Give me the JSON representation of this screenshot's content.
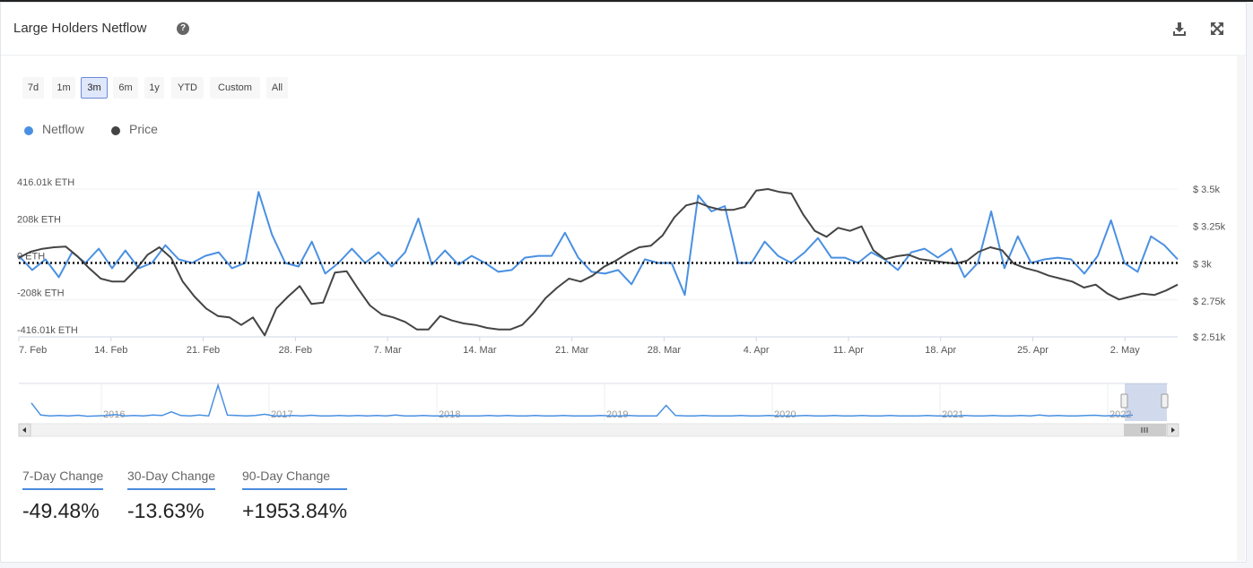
{
  "header": {
    "title": "Large Holders Netflow",
    "help_icon": "question-circle-icon",
    "download_icon": "download-icon",
    "expand_icon": "expand-icon"
  },
  "range_selector": {
    "buttons": [
      "7d",
      "1m",
      "3m",
      "6m",
      "1y",
      "YTD",
      "Custom",
      "All"
    ],
    "active": "3m"
  },
  "colors": {
    "netflow": "#4a90e2",
    "price": "#444444",
    "stat_underline": "#4a8bdf"
  },
  "chart_data": {
    "type": "line",
    "legend": [
      "Netflow",
      "Price"
    ],
    "legend_position": "top-left",
    "x_tick_labels": [
      "7. Feb",
      "14. Feb",
      "21. Feb",
      "28. Feb",
      "7. Mar",
      "14. Mar",
      "21. Mar",
      "28. Mar",
      "4. Apr",
      "11. Apr",
      "18. Apr",
      "25. Apr",
      "2. May"
    ],
    "x_range": [
      "2022-02-07",
      "2022-05-06"
    ],
    "left_axis": {
      "tick_labels": [
        "416.01k ETH",
        "208k ETH",
        "0 ETH",
        "-208k ETH",
        "-416.01k ETH"
      ],
      "ylim": [
        -416010,
        416010
      ]
    },
    "right_axis": {
      "tick_labels": [
        "$ 3.5k",
        "$ 3.25k",
        "$ 3k",
        "$ 2.75k",
        "$ 2.51k"
      ],
      "ylim": [
        2510,
        3500
      ]
    },
    "zero_line": "dotted",
    "grid": true,
    "series": [
      {
        "name": "Netflow",
        "axis": "left",
        "values": [
          40000,
          -40000,
          20000,
          -80000,
          60000,
          0,
          80000,
          -30000,
          70000,
          -30000,
          0,
          100000,
          20000,
          0,
          40000,
          60000,
          -30000,
          0,
          400000,
          160000,
          0,
          -20000,
          120000,
          -60000,
          0,
          80000,
          0,
          60000,
          -20000,
          60000,
          250000,
          -10000,
          70000,
          -10000,
          40000,
          0,
          -50000,
          -40000,
          30000,
          40000,
          40000,
          170000,
          30000,
          -50000,
          -60000,
          -40000,
          -120000,
          20000,
          0,
          0,
          -180000,
          380000,
          290000,
          320000,
          0,
          0,
          120000,
          40000,
          0,
          60000,
          140000,
          30000,
          30000,
          0,
          60000,
          20000,
          -40000,
          60000,
          80000,
          30000,
          80000,
          -80000,
          0,
          290000,
          -30000,
          150000,
          0,
          20000,
          30000,
          20000,
          -60000,
          40000,
          240000,
          0,
          -50000,
          150000,
          100000,
          20000
        ],
        "values_unit": "ETH"
      },
      {
        "name": "Price",
        "axis": "right",
        "values": [
          3040,
          3080,
          3100,
          3110,
          3115,
          3050,
          2970,
          2900,
          2880,
          2880,
          2960,
          3060,
          3110,
          3040,
          2880,
          2780,
          2700,
          2650,
          2640,
          2590,
          2640,
          2520,
          2700,
          2780,
          2850,
          2730,
          2740,
          2940,
          2950,
          2830,
          2720,
          2660,
          2640,
          2610,
          2560,
          2560,
          2650,
          2620,
          2600,
          2590,
          2570,
          2560,
          2560,
          2590,
          2670,
          2770,
          2840,
          2900,
          2880,
          2920,
          2980,
          3020,
          3070,
          3110,
          3120,
          3190,
          3310,
          3390,
          3410,
          3380,
          3360,
          3360,
          3380,
          3490,
          3500,
          3480,
          3470,
          3330,
          3220,
          3180,
          3240,
          3220,
          3250,
          3090,
          3030,
          3050,
          3060,
          3030,
          3020,
          3010,
          3000,
          3020,
          3080,
          3110,
          3090,
          3000,
          2970,
          2950,
          2920,
          2900,
          2880,
          2840,
          2860,
          2800,
          2760,
          2780,
          2800,
          2790,
          2820,
          2860
        ],
        "values_unit": "USD"
      }
    ]
  },
  "navigator": {
    "year_labels": [
      "2016",
      "2017",
      "2018",
      "2019",
      "2020",
      "2021",
      "2022"
    ],
    "scroll_left_icon": "arrow-left-icon",
    "scroll_right_icon": "arrow-right-icon",
    "scroll_grip_icon": "grip-icon",
    "values": [
      0.9,
      0.15,
      0.1,
      0.12,
      0.1,
      0.14,
      0.08,
      0.1,
      0.12,
      0.18,
      0.1,
      0.12,
      0.1,
      0.15,
      0.12,
      0.35,
      0.12,
      0.1,
      0.15,
      0.1,
      2.0,
      0.15,
      0.12,
      0.1,
      0.12,
      0.2,
      0.1,
      0.1,
      0.12,
      0.1,
      0.14,
      0.1,
      0.1,
      0.12,
      0.1,
      0.12,
      0.1,
      0.12,
      0.1,
      0.15,
      0.1,
      0.1,
      0.12,
      0.1,
      0.1,
      0.12,
      0.1,
      0.1,
      0.1,
      0.12,
      0.1,
      0.12,
      0.1,
      0.1,
      0.12,
      0.1,
      0.1,
      0.12,
      0.1,
      0.1,
      0.1,
      0.12,
      0.1,
      0.1,
      0.12,
      0.1,
      0.1,
      0.1,
      0.75,
      0.12,
      0.1,
      0.1,
      0.12,
      0.1,
      0.1,
      0.1,
      0.12,
      0.1,
      0.1,
      0.12,
      0.1,
      0.1,
      0.1,
      0.12,
      0.1,
      0.1,
      0.12,
      0.1,
      0.1,
      0.12,
      0.1,
      0.1,
      0.12,
      0.1,
      0.1,
      0.1,
      0.12,
      0.1,
      0.1,
      0.1,
      0.12,
      0.1,
      0.1,
      0.12,
      0.1,
      0.1,
      0.12,
      0.1,
      0.15,
      0.1,
      0.12,
      0.1,
      0.1,
      0.12,
      0.14,
      0.1,
      0.12,
      0.1,
      0.15
    ]
  },
  "stats": [
    {
      "label": "7-Day Change",
      "value": "-49.48%"
    },
    {
      "label": "30-Day Change",
      "value": "-13.63%"
    },
    {
      "label": "90-Day Change",
      "value": "+1953.84%"
    }
  ]
}
